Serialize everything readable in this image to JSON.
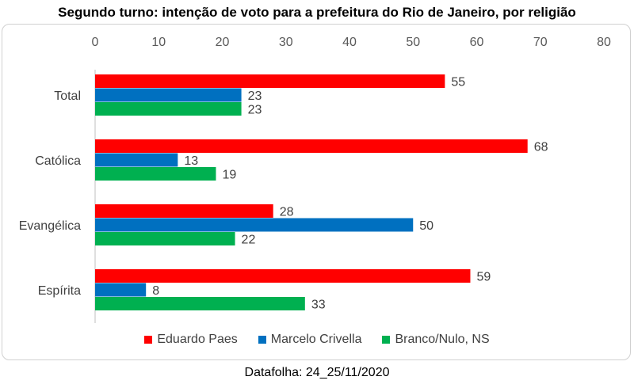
{
  "title": "Segundo turno: intenção de voto para a prefeitura do Rio de Janeiro, por religião",
  "source": "Datafolha: 24_25/11/2020",
  "chart_data": {
    "type": "bar",
    "orientation": "horizontal",
    "categories": [
      "Total",
      "Católica",
      "Evangélica",
      "Espírita"
    ],
    "series": [
      {
        "name": "Eduardo Paes",
        "color": "#ff0000",
        "values": [
          55,
          68,
          28,
          59
        ]
      },
      {
        "name": "Marcelo Crivella",
        "color": "#0070c0",
        "values": [
          23,
          13,
          50,
          8
        ]
      },
      {
        "name": "Branco/Nulo, NS",
        "color": "#00b050",
        "values": [
          23,
          19,
          22,
          33
        ]
      }
    ],
    "xlim": [
      0,
      80
    ],
    "xticks": [
      0,
      10,
      20,
      30,
      40,
      50,
      60,
      70,
      80
    ],
    "axis_position": "top",
    "legend_position": "bottom",
    "grid": false,
    "data_labels": true
  }
}
